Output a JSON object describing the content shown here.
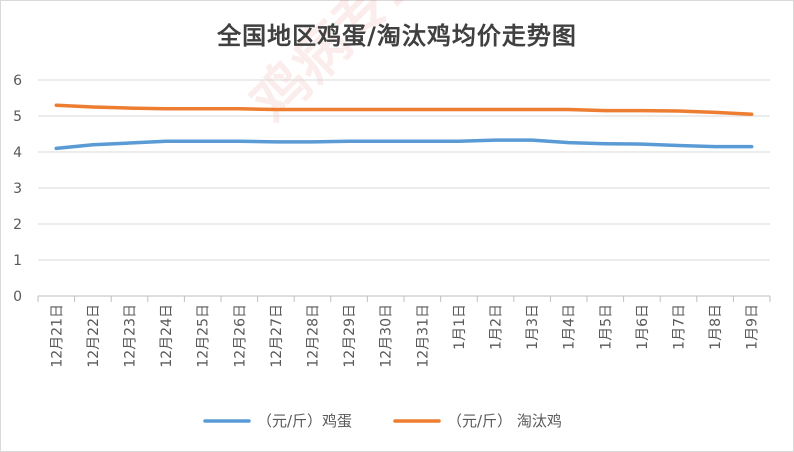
{
  "watermark": "鸡病专业网 www.jbzyw.com",
  "chart_data": {
    "type": "line",
    "title": "全国地区鸡蛋/淘汰鸡均价走势图",
    "xlabel": "",
    "ylabel": "",
    "ylim": [
      0,
      6
    ],
    "yticks": [
      "0",
      "1",
      "2",
      "3",
      "4",
      "5",
      "6"
    ],
    "grid": true,
    "legend_position": "bottom",
    "categories": [
      "12月21日",
      "12月22日",
      "12月23日",
      "12月24日",
      "12月25日",
      "12月26日",
      "12月27日",
      "12月28日",
      "12月29日",
      "12月30日",
      "12月31日",
      "1月1日",
      "1月2日",
      "1月3日",
      "1月4日",
      "1月5日",
      "1月6日",
      "1月7日",
      "1月8日",
      "1月9日"
    ],
    "series": [
      {
        "name": "（元/斤）鸡蛋",
        "color": "#5b9bd5",
        "values": [
          4.1,
          4.2,
          4.25,
          4.3,
          4.3,
          4.3,
          4.28,
          4.28,
          4.3,
          4.3,
          4.3,
          4.3,
          4.33,
          4.33,
          4.26,
          4.23,
          4.22,
          4.18,
          4.15,
          4.15
        ]
      },
      {
        "name": "（元/斤） 淘汰鸡",
        "color": "#ed7d31",
        "values": [
          5.3,
          5.25,
          5.22,
          5.2,
          5.2,
          5.2,
          5.18,
          5.18,
          5.18,
          5.18,
          5.18,
          5.18,
          5.18,
          5.18,
          5.18,
          5.15,
          5.15,
          5.14,
          5.1,
          5.05
        ]
      }
    ]
  }
}
